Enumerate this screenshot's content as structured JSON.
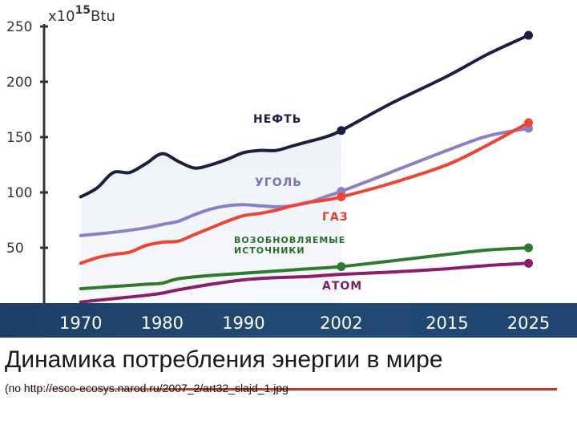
{
  "chart_data": {
    "type": "line",
    "ylabel": "x10",
    "ylabel_sup": "15",
    "ylabel_unit": "Btu",
    "ylim": [
      0,
      250
    ],
    "y_ticks": [
      50,
      100,
      150,
      200,
      250
    ],
    "x_tick_labels": [
      "1970",
      "1980",
      "1990",
      "2002",
      "2015",
      "2025"
    ],
    "x_tick_years": [
      1970,
      1980,
      1990,
      2002,
      2015,
      2025
    ],
    "xlim": [
      1965.5,
      2028
    ],
    "grid": false,
    "series": [
      {
        "name": "НЕФТЬ",
        "color": "#1c1f3f",
        "x": [
          1970,
          1972,
          1974,
          1976,
          1978,
          1980,
          1982,
          1984,
          1986,
          1988,
          1990,
          1992,
          1994,
          1996,
          1998,
          2000,
          2002,
          2008,
          2015,
          2020,
          2025
        ],
        "y": [
          96,
          104,
          118,
          118,
          126,
          135,
          128,
          122,
          125,
          130,
          136,
          138,
          138,
          142,
          146,
          150,
          156,
          180,
          205,
          225,
          242
        ],
        "markers": [
          2002,
          2025
        ]
      },
      {
        "name": "УГОЛЬ",
        "color": "#8e7fc4",
        "x": [
          1970,
          1974,
          1978,
          1980,
          1982,
          1984,
          1986,
          1988,
          1990,
          1992,
          1994,
          1996,
          1998,
          2000,
          2002,
          2008,
          2015,
          2020,
          2025
        ],
        "y": [
          61,
          64,
          68,
          71,
          74,
          80,
          85,
          88,
          89,
          88,
          87,
          88,
          91,
          96,
          101,
          118,
          138,
          151,
          158
        ],
        "markers": [
          2002,
          2025
        ]
      },
      {
        "name": "ГАЗ",
        "color": "#ee4433",
        "x": [
          1970,
          1972,
          1974,
          1976,
          1978,
          1980,
          1982,
          1984,
          1986,
          1988,
          1990,
          1992,
          1994,
          1996,
          1998,
          2000,
          2002,
          2008,
          2015,
          2020,
          2025
        ],
        "y": [
          36,
          41,
          44,
          46,
          52,
          55,
          56,
          62,
          68,
          74,
          79,
          81,
          84,
          88,
          91,
          93,
          96,
          108,
          125,
          143,
          163
        ],
        "markers": [
          2002,
          2025
        ]
      },
      {
        "name": "ВОЗОБНОВЛЯЕМЫЕ ИСТОЧНИКИ",
        "color": "#2f7a2f",
        "x": [
          1970,
          1974,
          1978,
          1980,
          1982,
          1986,
          1990,
          1994,
          1998,
          2002,
          2008,
          2015,
          2020,
          2025
        ],
        "y": [
          13,
          15,
          17,
          18,
          22,
          25,
          27,
          29,
          31,
          33,
          38,
          44,
          48,
          50
        ],
        "markers": [
          2002,
          2025
        ]
      },
      {
        "name": "АТОМ",
        "color": "#8a1e6a",
        "x": [
          1970,
          1974,
          1978,
          1980,
          1982,
          1986,
          1990,
          1994,
          1998,
          2002,
          2008,
          2015,
          2020,
          2025
        ],
        "y": [
          1,
          4,
          7,
          9,
          12,
          17,
          21,
          23,
          24,
          26,
          28,
          31,
          34,
          36
        ],
        "markers": [
          2025
        ]
      }
    ],
    "series_labels": {
      "oil": "НЕФТЬ",
      "coal": "УГОЛЬ",
      "gas": "ГАЗ",
      "renewables_line1": "ВОЗОБНОВЛЯЕМЫЕ",
      "renewables_line2": "ИСТОЧНИКИ",
      "nuclear": "АТОМ"
    }
  },
  "caption": "Динамика потребления энергии в мире",
  "source": "(по http://esco-ecosys.narod.ru/2007_2/art32_slajd_1.jpg"
}
